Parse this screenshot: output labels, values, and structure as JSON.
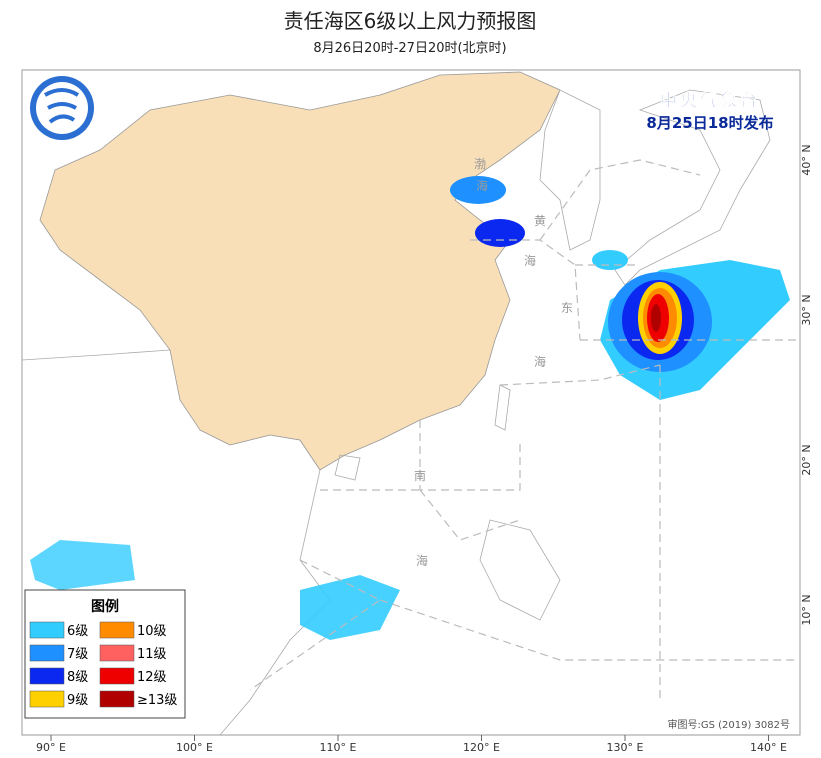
{
  "header": {
    "title": "责任海区6级以上风力预报图",
    "subtitle": "8月26日20时-27日20时(北京时)"
  },
  "issuer": {
    "agency": "中央气象台",
    "time": "8月25日18时发布"
  },
  "legend": {
    "title": "图例",
    "items": [
      {
        "label": "6级",
        "color": "#33ccff"
      },
      {
        "label": "10级",
        "color": "#ff8c00"
      },
      {
        "label": "7级",
        "color": "#1e90ff"
      },
      {
        "label": "11级",
        "color": "#ff6060"
      },
      {
        "label": "8级",
        "color": "#0a28f0"
      },
      {
        "label": "12级",
        "color": "#ee0000"
      },
      {
        "label": "9级",
        "color": "#ffd000"
      },
      {
        "label": "≥13级",
        "color": "#b00000"
      }
    ]
  },
  "map": {
    "sea_labels": [
      "渤",
      "海",
      "黄",
      "海",
      "东",
      "海",
      "南",
      "海"
    ],
    "lon_labels": [
      "90° E",
      "100° E",
      "110° E",
      "120° E",
      "130° E",
      "140° E"
    ],
    "lat_labels": [
      "40° N",
      "30° N",
      "20° N",
      "10° N"
    ],
    "approval": "审图号:GS (2019) 3082号"
  }
}
